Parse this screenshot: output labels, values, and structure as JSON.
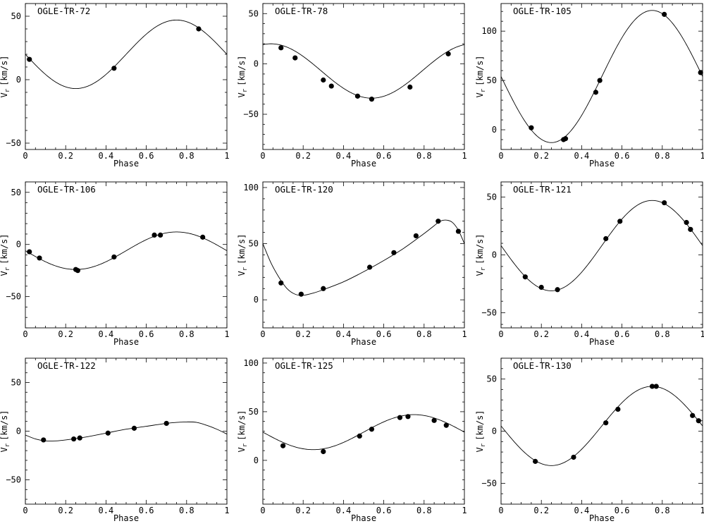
{
  "chart_data": [
    {
      "type": "scatter",
      "title": "OGLE-TR-72",
      "xlabel": "Phase",
      "ylabel": "V",
      "ylabel_sub": "r",
      "ylabel_unit": "[km/s]",
      "xlim": [
        0,
        1
      ],
      "ylim": [
        -55,
        60
      ],
      "xticks": [
        0,
        0.2,
        0.4,
        0.6,
        0.8,
        1
      ],
      "xtick_labels": [
        "0",
        "0.2",
        "0.4",
        "0.6",
        "0.8",
        "1"
      ],
      "yticks": [
        -50,
        0,
        50
      ],
      "ytick_labels": [
        "−50",
        "0",
        "50"
      ],
      "fit_curve": {
        "type": "sinusoid",
        "offset": 20,
        "amplitude": 27,
        "phase_of_max": 0.75,
        "eccentric": false
      },
      "points": [
        {
          "x": 0.02,
          "y": 16
        },
        {
          "x": 0.44,
          "y": 9
        },
        {
          "x": 0.86,
          "y": 40
        }
      ]
    },
    {
      "type": "scatter",
      "title": "OGLE-TR-78",
      "xlabel": "Phase",
      "ylabel": "V",
      "ylabel_sub": "r",
      "ylabel_unit": "[km/s]",
      "xlim": [
        0,
        1
      ],
      "ylim": [
        -85,
        60
      ],
      "xticks": [
        0,
        0.2,
        0.4,
        0.6,
        0.8,
        1
      ],
      "xtick_labels": [
        "0",
        "0.2",
        "0.4",
        "0.6",
        "0.8",
        "1"
      ],
      "yticks": [
        -50,
        0,
        50
      ],
      "ytick_labels": [
        "−50",
        "0",
        "50"
      ],
      "fit_curve": {
        "type": "sinusoid",
        "offset": -7,
        "amplitude": 27,
        "phase_of_max": 0.04,
        "eccentric": false
      },
      "points": [
        {
          "x": 0.09,
          "y": 16
        },
        {
          "x": 0.16,
          "y": 6
        },
        {
          "x": 0.3,
          "y": -16
        },
        {
          "x": 0.34,
          "y": -22
        },
        {
          "x": 0.47,
          "y": -32
        },
        {
          "x": 0.54,
          "y": -35
        },
        {
          "x": 0.73,
          "y": -23
        },
        {
          "x": 0.92,
          "y": 10
        }
      ]
    },
    {
      "type": "scatter",
      "title": "OGLE-TR-105",
      "xlabel": "Phase",
      "ylabel": "V",
      "ylabel_sub": "r",
      "ylabel_unit": "[km/s]",
      "xlim": [
        0,
        1
      ],
      "ylim": [
        -20,
        128
      ],
      "xticks": [
        0,
        0.2,
        0.4,
        0.6,
        0.8,
        1
      ],
      "xtick_labels": [
        "0",
        "0.2",
        "0.4",
        "0.6",
        "0.8",
        "1"
      ],
      "yticks": [
        0,
        50,
        100
      ],
      "ytick_labels": [
        "0",
        "50",
        "100"
      ],
      "fit_curve": {
        "type": "sinusoid",
        "offset": 54,
        "amplitude": 67,
        "phase_of_max": 0.75,
        "eccentric": false
      },
      "points": [
        {
          "x": 0.15,
          "y": 2
        },
        {
          "x": 0.31,
          "y": -10
        },
        {
          "x": 0.32,
          "y": -9
        },
        {
          "x": 0.47,
          "y": 38
        },
        {
          "x": 0.49,
          "y": 50
        },
        {
          "x": 0.81,
          "y": 117
        },
        {
          "x": 0.99,
          "y": 58
        }
      ]
    },
    {
      "type": "scatter",
      "title": "OGLE-TR-106",
      "xlabel": "Phase",
      "ylabel": "V",
      "ylabel_sub": "r",
      "ylabel_unit": "[km/s]",
      "xlim": [
        0,
        1
      ],
      "ylim": [
        -80,
        60
      ],
      "xticks": [
        0,
        0.2,
        0.4,
        0.6,
        0.8,
        1
      ],
      "xtick_labels": [
        "0",
        "0.2",
        "0.4",
        "0.6",
        "0.8",
        "1"
      ],
      "yticks": [
        -50,
        0,
        50
      ],
      "ytick_labels": [
        "−50",
        "0",
        "50"
      ],
      "fit_curve": {
        "type": "sinusoid",
        "offset": -6,
        "amplitude": 18,
        "phase_of_max": 0.75,
        "eccentric": false
      },
      "points": [
        {
          "x": 0.02,
          "y": -7
        },
        {
          "x": 0.07,
          "y": -13
        },
        {
          "x": 0.25,
          "y": -24
        },
        {
          "x": 0.26,
          "y": -25
        },
        {
          "x": 0.44,
          "y": -12
        },
        {
          "x": 0.64,
          "y": 9
        },
        {
          "x": 0.67,
          "y": 9
        },
        {
          "x": 0.88,
          "y": 7
        }
      ]
    },
    {
      "type": "scatter",
      "title": "OGLE-TR-120",
      "xlabel": "Phase",
      "ylabel": "V",
      "ylabel_sub": "r",
      "ylabel_unit": "[km/s]",
      "xlim": [
        0,
        1
      ],
      "ylim": [
        -25,
        105
      ],
      "xticks": [
        0,
        0.2,
        0.4,
        0.6,
        0.8,
        1
      ],
      "xtick_labels": [
        "0",
        "0.2",
        "0.4",
        "0.6",
        "0.8",
        "1"
      ],
      "yticks": [
        0,
        50,
        100
      ],
      "ytick_labels": [
        "0",
        "50",
        "100"
      ],
      "fit_curve": {
        "type": "polyline",
        "eccentric": true,
        "points": [
          [
            0,
            50
          ],
          [
            0.04,
            33
          ],
          [
            0.08,
            20
          ],
          [
            0.12,
            10
          ],
          [
            0.16,
            5
          ],
          [
            0.2,
            4
          ],
          [
            0.25,
            6
          ],
          [
            0.3,
            9
          ],
          [
            0.4,
            16
          ],
          [
            0.5,
            25
          ],
          [
            0.6,
            35
          ],
          [
            0.7,
            46
          ],
          [
            0.8,
            59
          ],
          [
            0.85,
            66
          ],
          [
            0.88,
            70
          ],
          [
            0.91,
            71
          ],
          [
            0.94,
            69
          ],
          [
            0.97,
            62
          ],
          [
            1,
            50
          ]
        ]
      },
      "points": [
        {
          "x": 0.09,
          "y": 15
        },
        {
          "x": 0.19,
          "y": 5
        },
        {
          "x": 0.3,
          "y": 10
        },
        {
          "x": 0.53,
          "y": 29
        },
        {
          "x": 0.65,
          "y": 42
        },
        {
          "x": 0.76,
          "y": 57
        },
        {
          "x": 0.87,
          "y": 70
        },
        {
          "x": 0.97,
          "y": 61
        }
      ]
    },
    {
      "type": "scatter",
      "title": "OGLE-TR-121",
      "xlabel": "Phase",
      "ylabel": "V",
      "ylabel_sub": "r",
      "ylabel_unit": "[km/s]",
      "xlim": [
        0,
        1
      ],
      "ylim": [
        -63,
        63
      ],
      "xticks": [
        0,
        0.2,
        0.4,
        0.6,
        0.8,
        1
      ],
      "xtick_labels": [
        "0",
        "0.2",
        "0.4",
        "0.6",
        "0.8",
        "1"
      ],
      "yticks": [
        -50,
        0,
        50
      ],
      "ytick_labels": [
        "−50",
        "0",
        "50"
      ],
      "fit_curve": {
        "type": "sinusoid",
        "offset": 8,
        "amplitude": 39,
        "phase_of_max": 0.75,
        "eccentric": false
      },
      "points": [
        {
          "x": 0.12,
          "y": -19
        },
        {
          "x": 0.2,
          "y": -28
        },
        {
          "x": 0.28,
          "y": -30
        },
        {
          "x": 0.52,
          "y": 14
        },
        {
          "x": 0.59,
          "y": 29
        },
        {
          "x": 0.81,
          "y": 45
        },
        {
          "x": 0.92,
          "y": 28
        },
        {
          "x": 0.94,
          "y": 22
        }
      ]
    },
    {
      "type": "scatter",
      "title": "OGLE-TR-122",
      "xlabel": "Phase",
      "ylabel": "V",
      "ylabel_sub": "r",
      "ylabel_unit": "[km/s]",
      "xlim": [
        0,
        1
      ],
      "ylim": [
        -75,
        75
      ],
      "xticks": [
        0,
        0.2,
        0.4,
        0.6,
        0.8,
        1
      ],
      "xtick_labels": [
        "0",
        "0.2",
        "0.4",
        "0.6",
        "0.8",
        "1"
      ],
      "yticks": [
        -50,
        0,
        50
      ],
      "ytick_labels": [
        "−50",
        "0",
        "50"
      ],
      "fit_curve": {
        "type": "polyline",
        "eccentric": true,
        "points": [
          [
            0,
            -4
          ],
          [
            0.05,
            -8
          ],
          [
            0.1,
            -10
          ],
          [
            0.15,
            -10
          ],
          [
            0.2,
            -9
          ],
          [
            0.3,
            -6
          ],
          [
            0.4,
            -2
          ],
          [
            0.5,
            2
          ],
          [
            0.6,
            5
          ],
          [
            0.7,
            8
          ],
          [
            0.75,
            9
          ],
          [
            0.8,
            9.5
          ],
          [
            0.85,
            9
          ],
          [
            0.9,
            6
          ],
          [
            0.95,
            2
          ],
          [
            1,
            -3
          ]
        ]
      },
      "points": [
        {
          "x": 0.09,
          "y": -9
        },
        {
          "x": 0.24,
          "y": -8
        },
        {
          "x": 0.27,
          "y": -7
        },
        {
          "x": 0.41,
          "y": -2
        },
        {
          "x": 0.54,
          "y": 3
        },
        {
          "x": 0.7,
          "y": 8
        }
      ]
    },
    {
      "type": "scatter",
      "title": "OGLE-TR-125",
      "xlabel": "Phase",
      "ylabel": "V",
      "ylabel_sub": "r",
      "ylabel_unit": "[km/s]",
      "xlim": [
        0,
        1
      ],
      "ylim": [
        -45,
        105
      ],
      "xticks": [
        0,
        0.2,
        0.4,
        0.6,
        0.8,
        1
      ],
      "xtick_labels": [
        "0",
        "0.2",
        "0.4",
        "0.6",
        "0.8",
        "1"
      ],
      "yticks": [
        0,
        50,
        100
      ],
      "ytick_labels": [
        "0",
        "50",
        "100"
      ],
      "fit_curve": {
        "type": "sinusoid",
        "offset": 29,
        "amplitude": 18,
        "phase_of_max": 0.75,
        "eccentric": false
      },
      "points": [
        {
          "x": 0.1,
          "y": 15
        },
        {
          "x": 0.3,
          "y": 9
        },
        {
          "x": 0.48,
          "y": 25
        },
        {
          "x": 0.54,
          "y": 32
        },
        {
          "x": 0.68,
          "y": 44
        },
        {
          "x": 0.72,
          "y": 45
        },
        {
          "x": 0.85,
          "y": 41
        },
        {
          "x": 0.91,
          "y": 36
        }
      ]
    },
    {
      "type": "scatter",
      "title": "OGLE-TR-130",
      "xlabel": "Phase",
      "ylabel": "V",
      "ylabel_sub": "r",
      "ylabel_unit": "[km/s]",
      "xlim": [
        0,
        1
      ],
      "ylim": [
        -70,
        70
      ],
      "xticks": [
        0,
        0.2,
        0.4,
        0.6,
        0.8,
        1
      ],
      "xtick_labels": [
        "0",
        "0.2",
        "0.4",
        "0.6",
        "0.8",
        "1"
      ],
      "yticks": [
        -50,
        0,
        50
      ],
      "ytick_labels": [
        "−50",
        "0",
        "50"
      ],
      "fit_curve": {
        "type": "sinusoid",
        "offset": 5,
        "amplitude": 38,
        "phase_of_max": 0.75,
        "eccentric": false
      },
      "points": [
        {
          "x": 0.17,
          "y": -29
        },
        {
          "x": 0.36,
          "y": -25
        },
        {
          "x": 0.52,
          "y": 8
        },
        {
          "x": 0.58,
          "y": 21
        },
        {
          "x": 0.75,
          "y": 43
        },
        {
          "x": 0.77,
          "y": 43
        },
        {
          "x": 0.95,
          "y": 15
        },
        {
          "x": 0.98,
          "y": 10
        }
      ]
    }
  ]
}
